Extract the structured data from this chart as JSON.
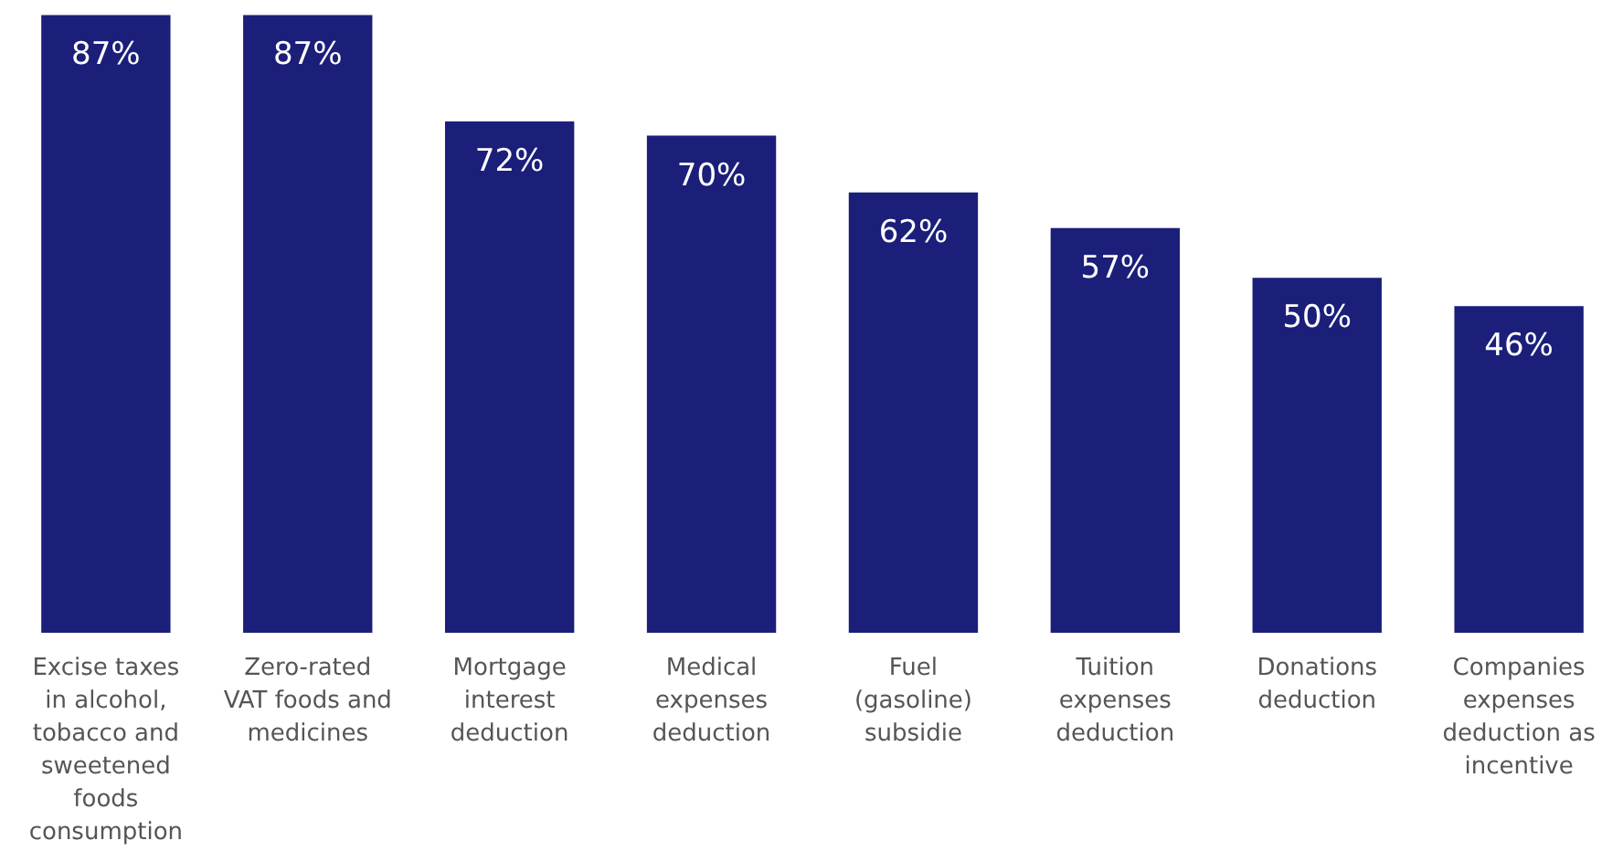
{
  "chart_data": {
    "type": "bar",
    "categories": [
      "Excise taxes in alcohol, tobacco and sweetened foods consumption",
      "Zero-rated VAT foods and medicines",
      "Mortgage interest deduction",
      "Medical expenses deduction",
      "Fuel (gasoline) subsidie",
      "Tuition expenses deduction",
      "Donations deduction",
      "Companies expenses deduction as incentive"
    ],
    "values": [
      87,
      87,
      72,
      70,
      62,
      57,
      50,
      46
    ],
    "value_labels": [
      "87%",
      "87%",
      "72%",
      "70%",
      "62%",
      "57%",
      "50%",
      "46%"
    ],
    "color": "#1b1f7a",
    "grid": false
  }
}
